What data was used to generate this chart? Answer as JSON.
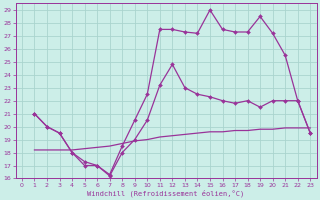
{
  "bg_color": "#cceee8",
  "grid_color": "#aad4ce",
  "line_color": "#993399",
  "xlabel": "Windchill (Refroidissement éolien,°C)",
  "xlim": [
    -0.5,
    23.5
  ],
  "ylim": [
    16,
    29.5
  ],
  "yticks": [
    16,
    17,
    18,
    19,
    20,
    21,
    22,
    23,
    24,
    25,
    26,
    27,
    28,
    29
  ],
  "xticks": [
    0,
    1,
    2,
    3,
    4,
    5,
    6,
    7,
    8,
    9,
    10,
    11,
    12,
    13,
    14,
    15,
    16,
    17,
    18,
    19,
    20,
    21,
    22,
    23
  ],
  "line1_x": [
    1,
    2,
    3,
    4,
    5,
    6,
    7,
    8,
    9,
    10,
    11,
    12,
    13,
    14,
    15,
    16,
    17,
    18,
    19,
    20,
    21,
    22,
    23
  ],
  "line1_y": [
    21,
    20,
    19.5,
    18,
    17,
    17,
    16.2,
    18,
    19,
    20.5,
    23.2,
    24.8,
    23.0,
    22.5,
    22.3,
    22.0,
    21.8,
    22.0,
    21.5,
    22.0,
    22.0,
    22.0,
    19.5
  ],
  "line2_x": [
    1,
    2,
    3,
    4,
    5,
    6,
    7,
    8,
    9,
    10,
    11,
    12,
    13,
    14,
    15,
    16,
    17,
    18,
    19,
    20,
    21,
    22,
    23
  ],
  "line2_y": [
    21,
    20,
    19.5,
    18,
    17.3,
    17.0,
    16.3,
    18.5,
    20.5,
    22.5,
    27.5,
    27.5,
    27.3,
    27.2,
    29.0,
    27.5,
    27.3,
    27.3,
    28.5,
    27.2,
    25.5,
    22.0,
    19.5
  ],
  "line3_x": [
    1,
    2,
    3,
    4,
    5,
    6,
    7,
    8,
    9,
    10,
    11,
    12,
    13,
    14,
    15,
    16,
    17,
    18,
    19,
    20,
    21,
    22,
    23
  ],
  "line3_y": [
    18.2,
    18.2,
    18.2,
    18.2,
    18.3,
    18.4,
    18.5,
    18.7,
    18.9,
    19.0,
    19.2,
    19.3,
    19.4,
    19.5,
    19.6,
    19.6,
    19.7,
    19.7,
    19.8,
    19.8,
    19.9,
    19.9,
    19.9
  ]
}
